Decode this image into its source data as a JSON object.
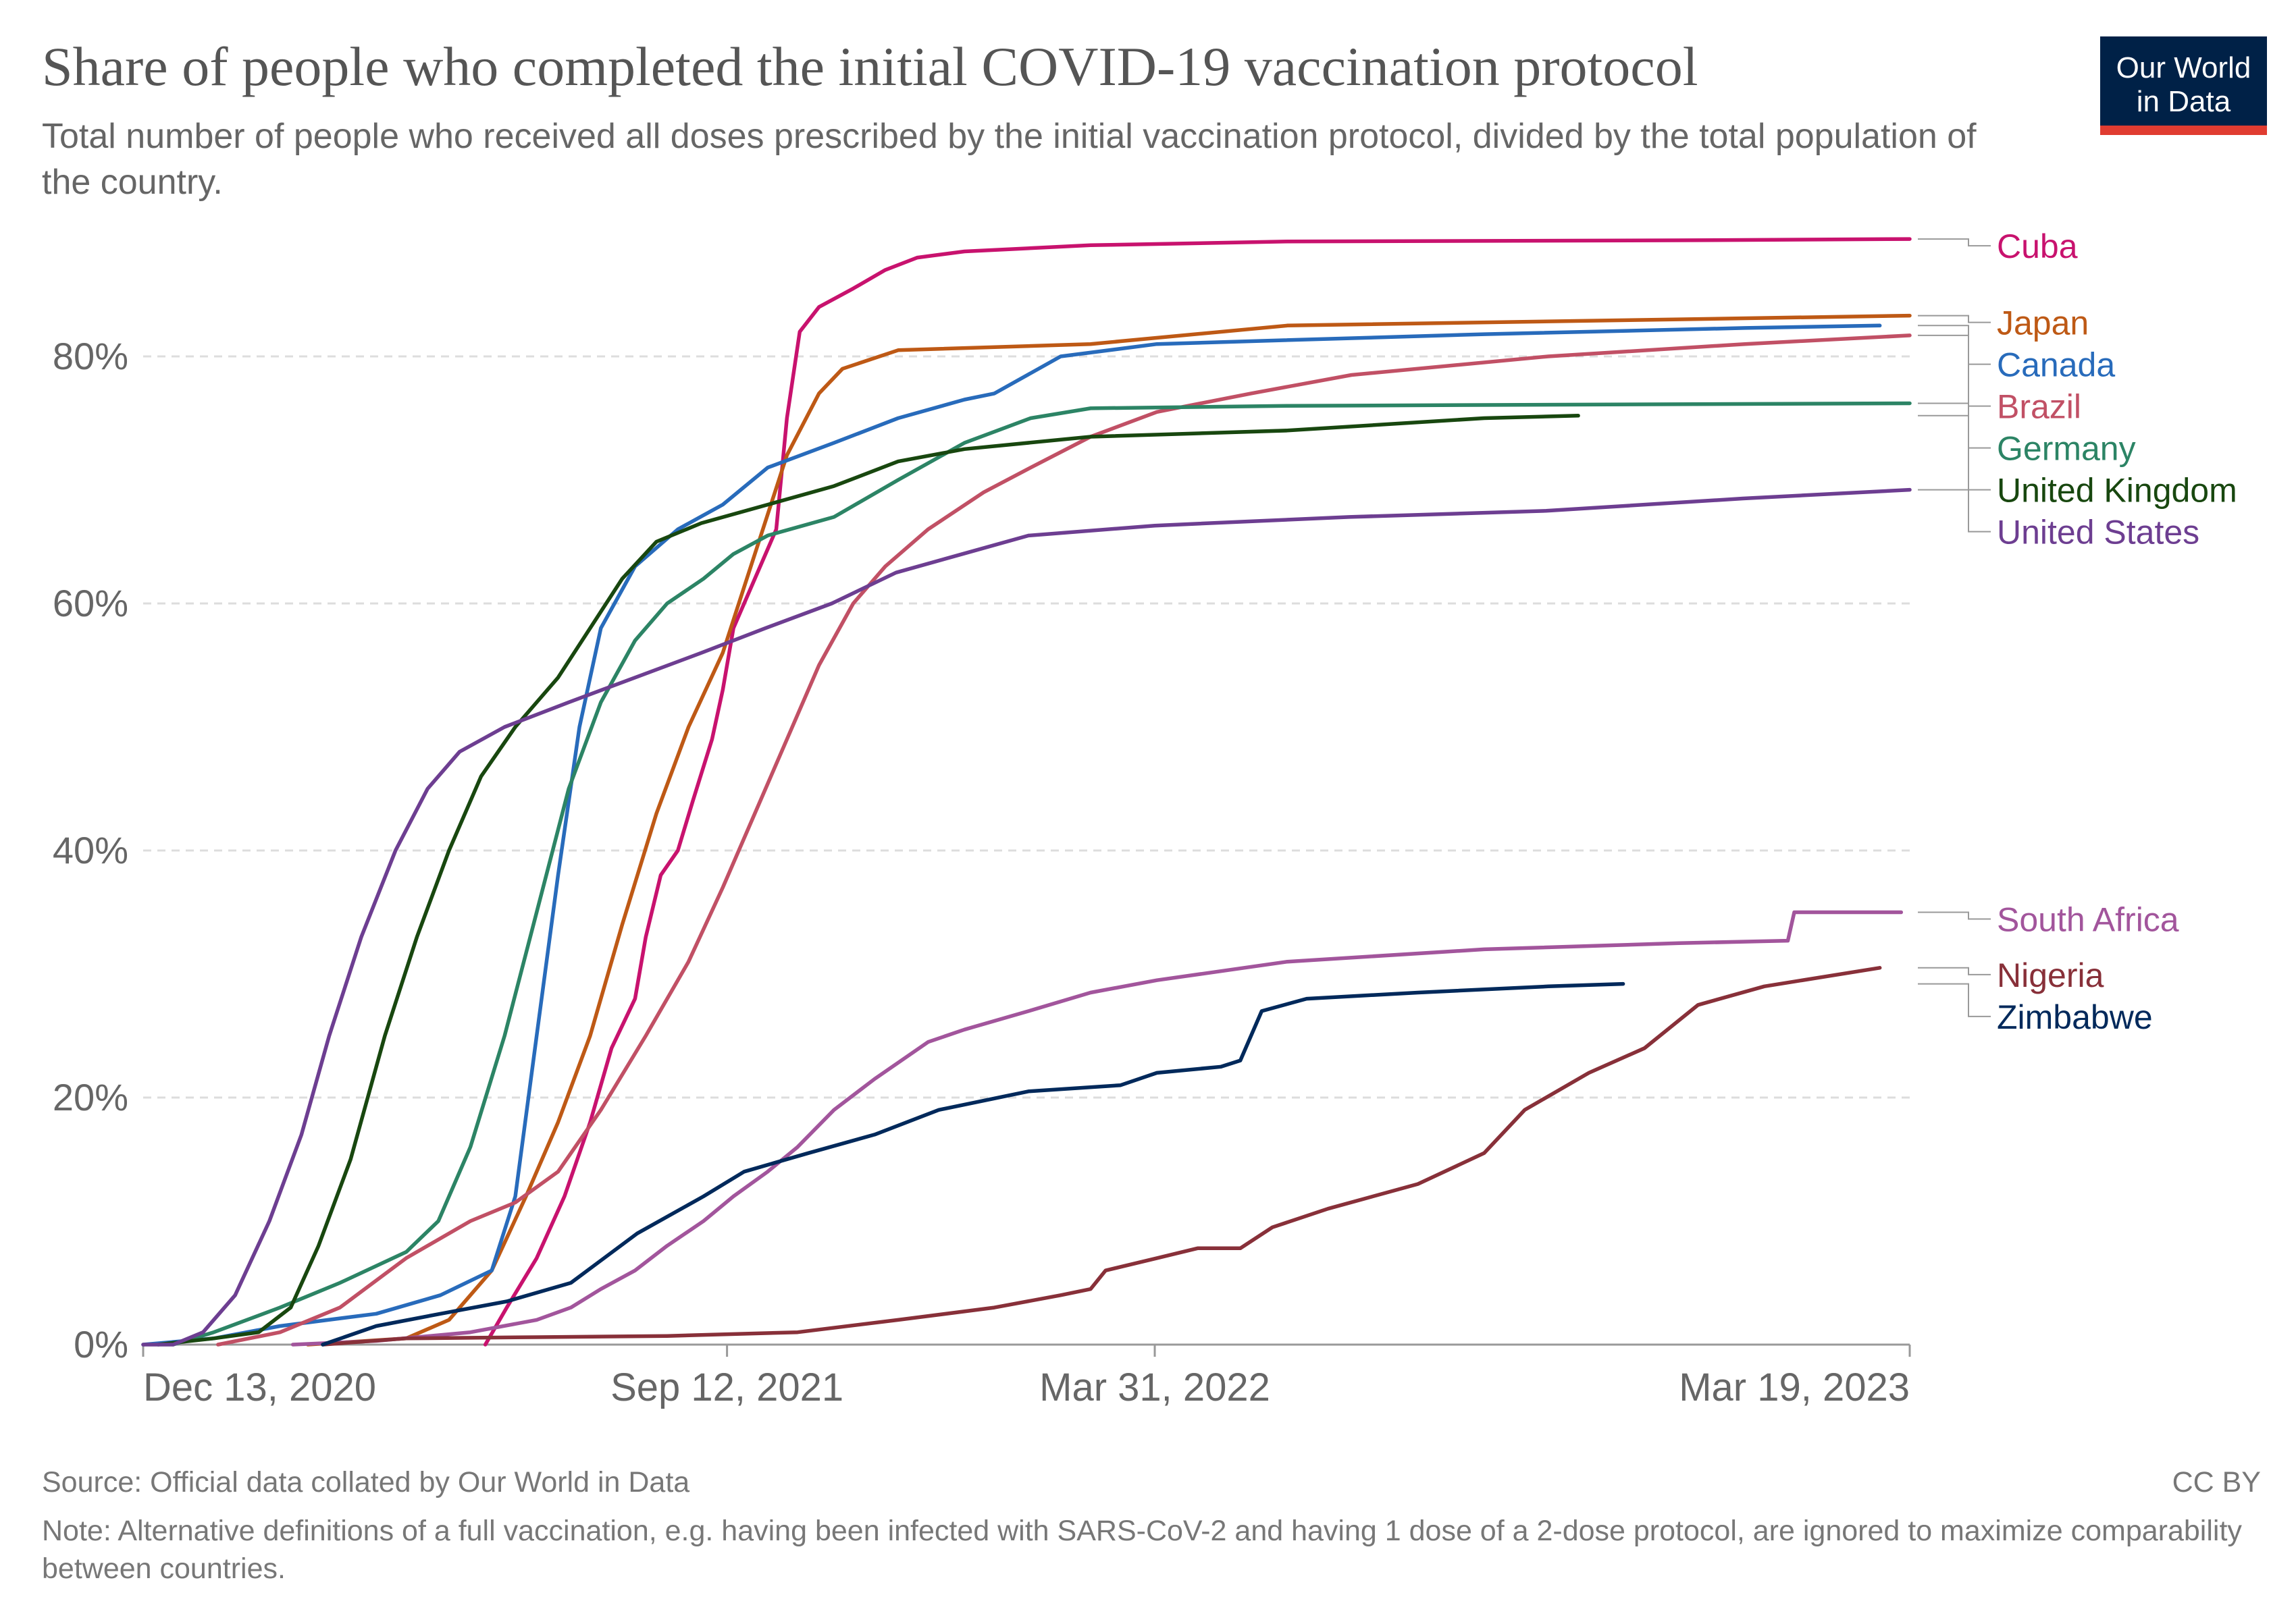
{
  "header": {
    "title": "Share of people who completed the initial COVID-19 vaccination protocol",
    "subtitle": "Total number of people who received all doses prescribed by the initial vaccination protocol, divided by the total population of the country.",
    "logo_line1": "Our World",
    "logo_line2": "in Data"
  },
  "footer": {
    "source": "Source: Official data collated by Our World in Data",
    "license": "CC BY",
    "note": "Note: Alternative definitions of a full vaccination, e.g. having been infected with SARS-CoV-2 and having 1 dose of a 2-dose protocol, are ignored to maximize comparability between countries."
  },
  "colors": {
    "logo_background": "#002147",
    "logo_accent": "#e03c31",
    "gridline": "#dddddd",
    "text": "#555555"
  },
  "chart_data": {
    "type": "line",
    "x_axis": {
      "type": "date",
      "range": [
        "2020-12-13",
        "2023-03-19"
      ],
      "ticks": [
        {
          "date": "2020-12-13",
          "label": "Dec 13, 2020"
        },
        {
          "date": "2021-09-12",
          "label": "Sep 12, 2021"
        },
        {
          "date": "2022-03-31",
          "label": "Mar 31, 2022"
        },
        {
          "date": "2023-03-19",
          "label": "Mar 19, 2023"
        }
      ]
    },
    "y_axis": {
      "range": [
        0,
        90
      ],
      "unit": "%",
      "ticks": [
        {
          "value": 0,
          "label": "0%"
        },
        {
          "value": 20,
          "label": "20%"
        },
        {
          "value": 40,
          "label": "40%"
        },
        {
          "value": 60,
          "label": "60%"
        },
        {
          "value": 80,
          "label": "80%"
        }
      ],
      "gridlines": true
    },
    "legend": "right, labels at line ends",
    "series": [
      {
        "name": "Cuba",
        "color": "#c8126e",
        "points": [
          [
            "2021-05-22",
            0
          ],
          [
            "2021-06-01",
            3
          ],
          [
            "2021-06-15",
            7
          ],
          [
            "2021-06-28",
            12
          ],
          [
            "2021-07-10",
            18
          ],
          [
            "2021-07-20",
            24
          ],
          [
            "2021-07-31",
            28
          ],
          [
            "2021-08-05",
            33
          ],
          [
            "2021-08-12",
            38
          ],
          [
            "2021-08-20",
            40
          ],
          [
            "2021-08-27",
            44
          ],
          [
            "2021-09-05",
            49
          ],
          [
            "2021-09-10",
            53
          ],
          [
            "2021-09-15",
            58
          ],
          [
            "2021-09-25",
            62
          ],
          [
            "2021-10-05",
            66
          ],
          [
            "2021-10-10",
            75
          ],
          [
            "2021-10-16",
            82
          ],
          [
            "2021-10-25",
            84
          ],
          [
            "2021-11-10",
            85.5
          ],
          [
            "2021-11-25",
            87
          ],
          [
            "2021-12-10",
            88
          ],
          [
            "2022-01-01",
            88.5
          ],
          [
            "2022-03-01",
            89
          ],
          [
            "2022-06-01",
            89.3
          ],
          [
            "2022-12-01",
            89.4
          ],
          [
            "2023-03-19",
            89.5
          ]
        ]
      },
      {
        "name": "Japan",
        "color": "#be5915",
        "points": [
          [
            "2021-02-28",
            0
          ],
          [
            "2021-04-15",
            0.5
          ],
          [
            "2021-05-05",
            2
          ],
          [
            "2021-05-25",
            6
          ],
          [
            "2021-06-10",
            12
          ],
          [
            "2021-06-25",
            18
          ],
          [
            "2021-07-10",
            25
          ],
          [
            "2021-07-25",
            34
          ],
          [
            "2021-08-10",
            43
          ],
          [
            "2021-08-25",
            50
          ],
          [
            "2021-09-10",
            56
          ],
          [
            "2021-09-25",
            64
          ],
          [
            "2021-10-10",
            72
          ],
          [
            "2021-10-25",
            77
          ],
          [
            "2021-11-05",
            79
          ],
          [
            "2021-12-01",
            80.5
          ],
          [
            "2022-03-01",
            81
          ],
          [
            "2022-06-01",
            82.5
          ],
          [
            "2022-12-01",
            83
          ],
          [
            "2023-03-19",
            83.3
          ]
        ]
      },
      {
        "name": "Canada",
        "color": "#286bbb",
        "points": [
          [
            "2020-12-13",
            0
          ],
          [
            "2021-01-15",
            0.5
          ],
          [
            "2021-02-15",
            1.5
          ],
          [
            "2021-04-01",
            2.5
          ],
          [
            "2021-05-01",
            4
          ],
          [
            "2021-05-25",
            6
          ],
          [
            "2021-06-05",
            12
          ],
          [
            "2021-06-15",
            25
          ],
          [
            "2021-06-25",
            38
          ],
          [
            "2021-07-05",
            50
          ],
          [
            "2021-07-15",
            58
          ],
          [
            "2021-07-31",
            63
          ],
          [
            "2021-08-20",
            66
          ],
          [
            "2021-09-10",
            68
          ],
          [
            "2021-10-01",
            71
          ],
          [
            "2021-11-01",
            73
          ],
          [
            "2021-12-01",
            75
          ],
          [
            "2022-01-01",
            76.5
          ],
          [
            "2022-01-15",
            77
          ],
          [
            "2022-02-15",
            80
          ],
          [
            "2022-04-01",
            81
          ],
          [
            "2022-09-01",
            81.8
          ],
          [
            "2023-01-01",
            82.3
          ],
          [
            "2023-03-05",
            82.5
          ]
        ]
      },
      {
        "name": "Brazil",
        "color": "#c15065",
        "points": [
          [
            "2021-01-17",
            0
          ],
          [
            "2021-02-15",
            1
          ],
          [
            "2021-03-15",
            3
          ],
          [
            "2021-04-15",
            7
          ],
          [
            "2021-05-15",
            10
          ],
          [
            "2021-06-05",
            11.5
          ],
          [
            "2021-06-25",
            14
          ],
          [
            "2021-07-15",
            19
          ],
          [
            "2021-08-05",
            25
          ],
          [
            "2021-08-25",
            31
          ],
          [
            "2021-09-10",
            37
          ],
          [
            "2021-09-25",
            43
          ],
          [
            "2021-10-10",
            49
          ],
          [
            "2021-10-25",
            55
          ],
          [
            "2021-11-10",
            60
          ],
          [
            "2021-11-25",
            63
          ],
          [
            "2021-12-15",
            66
          ],
          [
            "2022-01-10",
            69
          ],
          [
            "2022-02-01",
            71
          ],
          [
            "2022-03-01",
            73.5
          ],
          [
            "2022-04-01",
            75.5
          ],
          [
            "2022-05-15",
            77
          ],
          [
            "2022-07-01",
            78.5
          ],
          [
            "2022-10-01",
            80
          ],
          [
            "2023-01-01",
            81
          ],
          [
            "2023-03-19",
            81.7
          ]
        ]
      },
      {
        "name": "Germany",
        "color": "#2c8465",
        "points": [
          [
            "2020-12-27",
            0
          ],
          [
            "2021-01-15",
            1
          ],
          [
            "2021-02-15",
            3
          ],
          [
            "2021-03-15",
            5
          ],
          [
            "2021-04-15",
            7.5
          ],
          [
            "2021-04-30",
            10
          ],
          [
            "2021-05-15",
            16
          ],
          [
            "2021-05-31",
            25
          ],
          [
            "2021-06-15",
            35
          ],
          [
            "2021-06-30",
            45
          ],
          [
            "2021-07-15",
            52
          ],
          [
            "2021-07-31",
            57
          ],
          [
            "2021-08-15",
            60
          ],
          [
            "2021-09-01",
            62
          ],
          [
            "2021-09-15",
            64
          ],
          [
            "2021-10-01",
            65.5
          ],
          [
            "2021-11-01",
            67
          ],
          [
            "2021-12-01",
            70
          ],
          [
            "2022-01-01",
            73
          ],
          [
            "2022-02-01",
            75
          ],
          [
            "2022-03-01",
            75.8
          ],
          [
            "2022-06-01",
            76
          ],
          [
            "2023-03-19",
            76.2
          ]
        ]
      },
      {
        "name": "United Kingdom",
        "color": "#18470f",
        "points": [
          [
            "2020-12-20",
            0
          ],
          [
            "2021-01-15",
            0.5
          ],
          [
            "2021-02-05",
            1
          ],
          [
            "2021-02-20",
            3
          ],
          [
            "2021-03-05",
            8
          ],
          [
            "2021-03-20",
            15
          ],
          [
            "2021-04-05",
            25
          ],
          [
            "2021-04-20",
            33
          ],
          [
            "2021-05-05",
            40
          ],
          [
            "2021-05-20",
            46
          ],
          [
            "2021-06-05",
            50
          ],
          [
            "2021-06-25",
            54
          ],
          [
            "2021-07-10",
            58
          ],
          [
            "2021-07-25",
            62
          ],
          [
            "2021-08-10",
            65
          ],
          [
            "2021-08-31",
            66.5
          ],
          [
            "2021-10-01",
            68
          ],
          [
            "2021-11-01",
            69.5
          ],
          [
            "2021-12-01",
            71.5
          ],
          [
            "2022-01-01",
            72.5
          ],
          [
            "2022-03-01",
            73.5
          ],
          [
            "2022-06-01",
            74
          ],
          [
            "2022-09-01",
            75
          ],
          [
            "2022-10-15",
            75.2
          ]
        ]
      },
      {
        "name": "United States",
        "color": "#6d3e91",
        "points": [
          [
            "2020-12-13",
            0
          ],
          [
            "2020-12-27",
            0
          ],
          [
            "2021-01-10",
            1
          ],
          [
            "2021-01-25",
            4
          ],
          [
            "2021-02-10",
            10
          ],
          [
            "2021-02-25",
            17
          ],
          [
            "2021-03-10",
            25
          ],
          [
            "2021-03-25",
            33
          ],
          [
            "2021-04-10",
            40
          ],
          [
            "2021-04-25",
            45
          ],
          [
            "2021-05-10",
            48
          ],
          [
            "2021-05-31",
            50
          ],
          [
            "2021-06-30",
            52
          ],
          [
            "2021-07-31",
            54
          ],
          [
            "2021-08-31",
            56
          ],
          [
            "2021-09-30",
            58
          ],
          [
            "2021-10-31",
            60
          ],
          [
            "2021-11-30",
            62.5
          ],
          [
            "2021-12-31",
            64
          ],
          [
            "2022-01-31",
            65.5
          ],
          [
            "2022-03-31",
            66.3
          ],
          [
            "2022-06-30",
            67
          ],
          [
            "2022-09-30",
            67.5
          ],
          [
            "2022-12-31",
            68.5
          ],
          [
            "2023-03-19",
            69.2
          ]
        ]
      },
      {
        "name": "South Africa",
        "color": "#a2559c",
        "points": [
          [
            "2021-02-21",
            0
          ],
          [
            "2021-04-01",
            0.3
          ],
          [
            "2021-05-15",
            1
          ],
          [
            "2021-06-15",
            2
          ],
          [
            "2021-07-01",
            3
          ],
          [
            "2021-07-15",
            4.5
          ],
          [
            "2021-07-31",
            6
          ],
          [
            "2021-08-15",
            8
          ],
          [
            "2021-09-01",
            10
          ],
          [
            "2021-09-15",
            12
          ],
          [
            "2021-10-01",
            14
          ],
          [
            "2021-10-15",
            16
          ],
          [
            "2021-11-01",
            19
          ],
          [
            "2021-11-20",
            21.5
          ],
          [
            "2021-12-15",
            24.5
          ],
          [
            "2022-01-01",
            25.5
          ],
          [
            "2022-01-31",
            27
          ],
          [
            "2022-03-01",
            28.5
          ],
          [
            "2022-04-01",
            29.5
          ],
          [
            "2022-06-01",
            31
          ],
          [
            "2022-09-01",
            32
          ],
          [
            "2022-12-01",
            32.5
          ],
          [
            "2023-01-21",
            32.7
          ],
          [
            "2023-01-24",
            35
          ],
          [
            "2023-03-15",
            35
          ]
        ]
      },
      {
        "name": "Nigeria",
        "color": "#883039",
        "points": [
          [
            "2021-03-07",
            0
          ],
          [
            "2021-04-15",
            0.5
          ],
          [
            "2021-06-15",
            0.6
          ],
          [
            "2021-08-15",
            0.7
          ],
          [
            "2021-10-15",
            1
          ],
          [
            "2021-12-01",
            2
          ],
          [
            "2022-01-15",
            3
          ],
          [
            "2022-02-15",
            4
          ],
          [
            "2022-03-01",
            4.5
          ],
          [
            "2022-03-08",
            6
          ],
          [
            "2022-04-01",
            7
          ],
          [
            "2022-04-20",
            7.8
          ],
          [
            "2022-05-10",
            7.8
          ],
          [
            "2022-05-25",
            9.5
          ],
          [
            "2022-06-20",
            11
          ],
          [
            "2022-08-01",
            13
          ],
          [
            "2022-09-01",
            15.5
          ],
          [
            "2022-09-20",
            19
          ],
          [
            "2022-10-20",
            22
          ],
          [
            "2022-11-15",
            24
          ],
          [
            "2022-12-10",
            27.5
          ],
          [
            "2023-01-10",
            29
          ],
          [
            "2023-03-05",
            30.5
          ]
        ]
      },
      {
        "name": "Zimbabwe",
        "color": "#00295b",
        "points": [
          [
            "2021-03-07",
            0
          ],
          [
            "2021-04-01",
            1.5
          ],
          [
            "2021-05-01",
            2.5
          ],
          [
            "2021-06-01",
            3.5
          ],
          [
            "2021-07-01",
            5
          ],
          [
            "2021-08-01",
            9
          ],
          [
            "2021-09-01",
            12
          ],
          [
            "2021-09-20",
            14
          ],
          [
            "2021-10-20",
            15.5
          ],
          [
            "2021-11-20",
            17
          ],
          [
            "2021-12-20",
            19
          ],
          [
            "2022-01-31",
            20.5
          ],
          [
            "2022-03-15",
            21
          ],
          [
            "2022-04-01",
            22
          ],
          [
            "2022-05-01",
            22.5
          ],
          [
            "2022-05-10",
            23
          ],
          [
            "2022-05-20",
            27
          ],
          [
            "2022-06-10",
            28
          ],
          [
            "2022-08-01",
            28.5
          ],
          [
            "2022-10-01",
            29
          ],
          [
            "2022-11-05",
            29.2
          ]
        ]
      }
    ]
  }
}
